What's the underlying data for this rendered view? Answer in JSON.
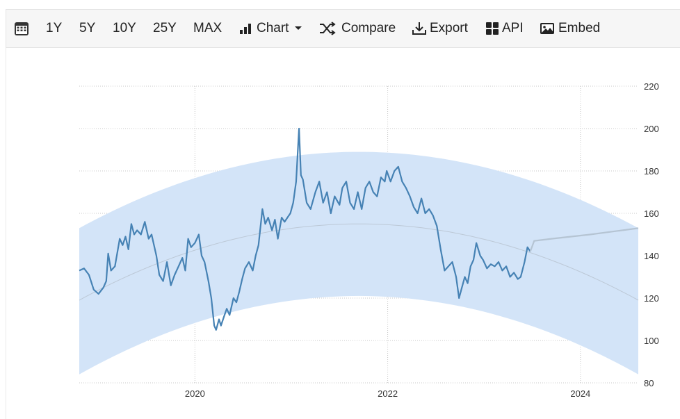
{
  "toolbar": {
    "ranges": [
      "1Y",
      "5Y",
      "10Y",
      "25Y",
      "MAX"
    ],
    "chart_label": "Chart",
    "compare_label": "Compare",
    "export_label": "Export",
    "api_label": "API",
    "embed_label": "Embed",
    "icons": [
      "calendar-icon",
      "bar-chart-icon",
      "caret-down-icon",
      "shuffle-icon",
      "download-icon",
      "grid-icon",
      "image-icon"
    ]
  },
  "chart_data": {
    "type": "line",
    "title": "",
    "xlabel": "",
    "ylabel": "",
    "x_ticks": [
      "2020",
      "2022",
      "2024"
    ],
    "y_ticks": [
      80,
      100,
      120,
      140,
      160,
      180,
      200,
      220
    ],
    "ylim": [
      80,
      220
    ],
    "xlim": [
      2018.8,
      2024.6
    ],
    "y_axis_position": "right",
    "grid": "dotted",
    "colors": {
      "line": "#4682b4",
      "band": "#d3e4f8",
      "forecast": "#b5c4d3",
      "trend": "#bcc8d6"
    },
    "series": [
      {
        "values": [
          [
            2018.8,
            133
          ],
          [
            2018.85,
            134
          ],
          [
            2018.9,
            131
          ],
          [
            2018.95,
            124
          ],
          [
            2019.0,
            122
          ],
          [
            2019.05,
            125
          ],
          [
            2019.08,
            128
          ],
          [
            2019.1,
            141
          ],
          [
            2019.13,
            133
          ],
          [
            2019.17,
            135
          ],
          [
            2019.22,
            148
          ],
          [
            2019.25,
            145
          ],
          [
            2019.28,
            149
          ],
          [
            2019.31,
            143
          ],
          [
            2019.34,
            155
          ],
          [
            2019.37,
            150
          ],
          [
            2019.4,
            152
          ],
          [
            2019.44,
            150
          ],
          [
            2019.48,
            156
          ],
          [
            2019.52,
            148
          ],
          [
            2019.55,
            150
          ],
          [
            2019.6,
            140
          ],
          [
            2019.63,
            131
          ],
          [
            2019.67,
            128
          ],
          [
            2019.71,
            137
          ],
          [
            2019.75,
            126
          ],
          [
            2019.79,
            131
          ],
          [
            2019.83,
            135
          ],
          [
            2019.87,
            139
          ],
          [
            2019.9,
            133
          ],
          [
            2019.93,
            148
          ],
          [
            2019.96,
            144
          ],
          [
            2020.0,
            146
          ],
          [
            2020.04,
            150
          ],
          [
            2020.07,
            140
          ],
          [
            2020.1,
            137
          ],
          [
            2020.14,
            128
          ],
          [
            2020.17,
            120
          ],
          [
            2020.2,
            107
          ],
          [
            2020.22,
            105
          ],
          [
            2020.25,
            110
          ],
          [
            2020.27,
            107
          ],
          [
            2020.3,
            111
          ],
          [
            2020.33,
            115
          ],
          [
            2020.36,
            112
          ],
          [
            2020.4,
            120
          ],
          [
            2020.43,
            118
          ],
          [
            2020.46,
            123
          ],
          [
            2020.49,
            129
          ],
          [
            2020.52,
            134
          ],
          [
            2020.56,
            137
          ],
          [
            2020.6,
            133
          ],
          [
            2020.63,
            140
          ],
          [
            2020.66,
            145
          ],
          [
            2020.7,
            162
          ],
          [
            2020.73,
            155
          ],
          [
            2020.76,
            158
          ],
          [
            2020.8,
            152
          ],
          [
            2020.83,
            157
          ],
          [
            2020.86,
            148
          ],
          [
            2020.9,
            158
          ],
          [
            2020.93,
            156
          ],
          [
            2020.96,
            158
          ],
          [
            2020.99,
            160
          ],
          [
            2021.02,
            165
          ],
          [
            2021.05,
            175
          ],
          [
            2021.08,
            200
          ],
          [
            2021.1,
            178
          ],
          [
            2021.12,
            176
          ],
          [
            2021.16,
            165
          ],
          [
            2021.2,
            162
          ],
          [
            2021.25,
            170
          ],
          [
            2021.29,
            175
          ],
          [
            2021.33,
            165
          ],
          [
            2021.37,
            170
          ],
          [
            2021.41,
            160
          ],
          [
            2021.45,
            168
          ],
          [
            2021.5,
            164
          ],
          [
            2021.53,
            172
          ],
          [
            2021.57,
            175
          ],
          [
            2021.61,
            165
          ],
          [
            2021.65,
            162
          ],
          [
            2021.69,
            170
          ],
          [
            2021.73,
            162
          ],
          [
            2021.77,
            172
          ],
          [
            2021.81,
            175
          ],
          [
            2021.85,
            170
          ],
          [
            2021.89,
            168
          ],
          [
            2021.93,
            177
          ],
          [
            2021.97,
            175
          ],
          [
            2021.99,
            180
          ],
          [
            2022.03,
            175
          ],
          [
            2022.07,
            180
          ],
          [
            2022.11,
            182
          ],
          [
            2022.15,
            175
          ],
          [
            2022.19,
            172
          ],
          [
            2022.23,
            168
          ],
          [
            2022.27,
            163
          ],
          [
            2022.31,
            160
          ],
          [
            2022.35,
            167
          ],
          [
            2022.39,
            160
          ],
          [
            2022.43,
            162
          ],
          [
            2022.47,
            159
          ],
          [
            2022.51,
            154
          ],
          [
            2022.55,
            143
          ],
          [
            2022.59,
            133
          ],
          [
            2022.63,
            135
          ],
          [
            2022.67,
            137
          ],
          [
            2022.71,
            130
          ],
          [
            2022.74,
            120
          ],
          [
            2022.77,
            125
          ],
          [
            2022.8,
            130
          ],
          [
            2022.83,
            127
          ],
          [
            2022.86,
            135
          ],
          [
            2022.89,
            138
          ],
          [
            2022.92,
            146
          ],
          [
            2022.96,
            140
          ],
          [
            2022.99,
            138
          ],
          [
            2023.03,
            134
          ],
          [
            2023.07,
            136
          ],
          [
            2023.11,
            135
          ],
          [
            2023.15,
            137
          ],
          [
            2023.19,
            133
          ],
          [
            2023.23,
            135
          ],
          [
            2023.27,
            130
          ],
          [
            2023.31,
            132
          ],
          [
            2023.35,
            129
          ],
          [
            2023.38,
            130
          ],
          [
            2023.42,
            137
          ],
          [
            2023.45,
            144
          ],
          [
            2023.48,
            142
          ]
        ]
      },
      {
        "values": [
          [
            2023.48,
            142
          ],
          [
            2023.52,
            147
          ],
          [
            2023.7,
            148
          ],
          [
            2024.1,
            150
          ],
          [
            2024.6,
            153
          ]
        ]
      }
    ]
  }
}
